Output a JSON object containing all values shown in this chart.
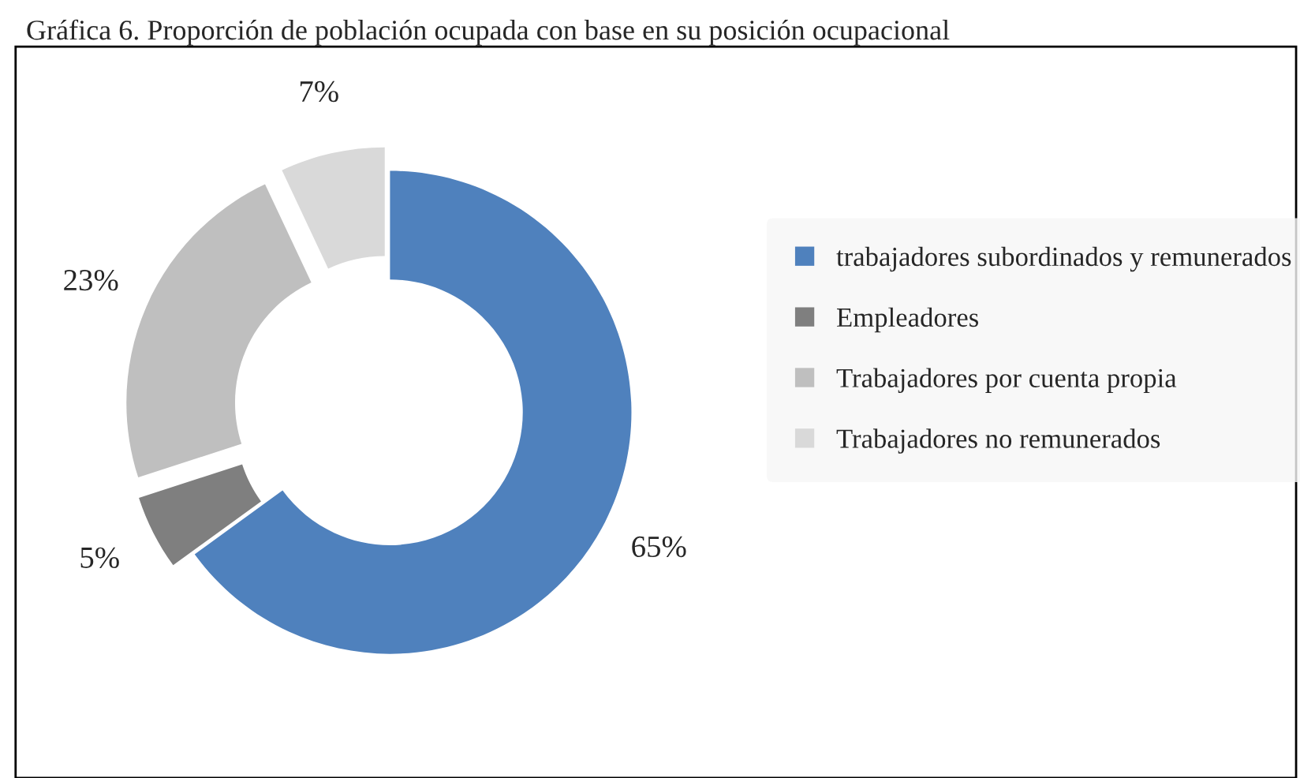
{
  "chart_data": {
    "type": "donut",
    "title": "Gráfica 6. Proporción de población ocupada con base en su posición ocupacional",
    "categories": [
      "trabajadores subordinados y remunerados",
      "Empleadores",
      "Trabajadores por cuenta propia",
      "Trabajadores no remunerados"
    ],
    "values": [
      65,
      5,
      23,
      7
    ],
    "colors": [
      "#4f81bd",
      "#7f7f7f",
      "#bfbfbf",
      "#d9d9d9"
    ],
    "value_labels": [
      "65%",
      "5%",
      "23%",
      "7%"
    ],
    "legend": "right"
  }
}
